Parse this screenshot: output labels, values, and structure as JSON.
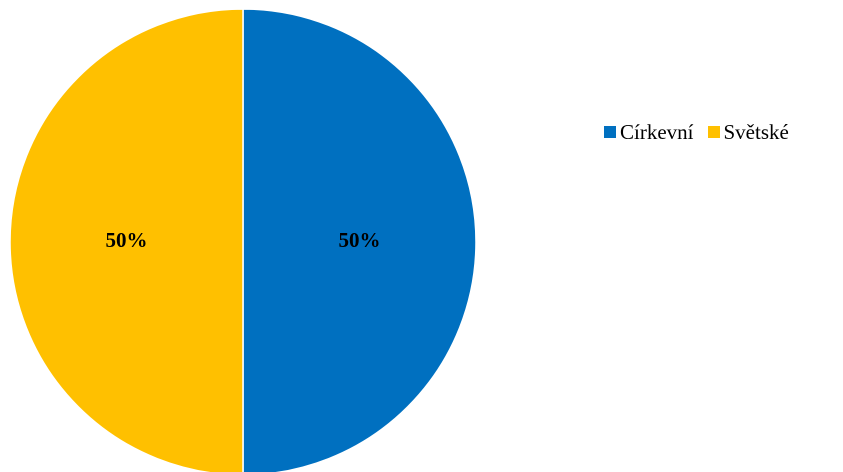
{
  "chart_data": {
    "type": "pie",
    "title": "",
    "categories": [
      "Církevní",
      "Světské"
    ],
    "values": [
      50,
      50
    ],
    "data_labels": [
      "50%",
      "50%"
    ],
    "colors": [
      "#0070C0",
      "#FFC000"
    ],
    "legend_position": "right"
  },
  "legend": {
    "items": [
      {
        "label": "Církevní",
        "color": "#0070C0"
      },
      {
        "label": "Světské",
        "color": "#FFC000"
      }
    ]
  }
}
